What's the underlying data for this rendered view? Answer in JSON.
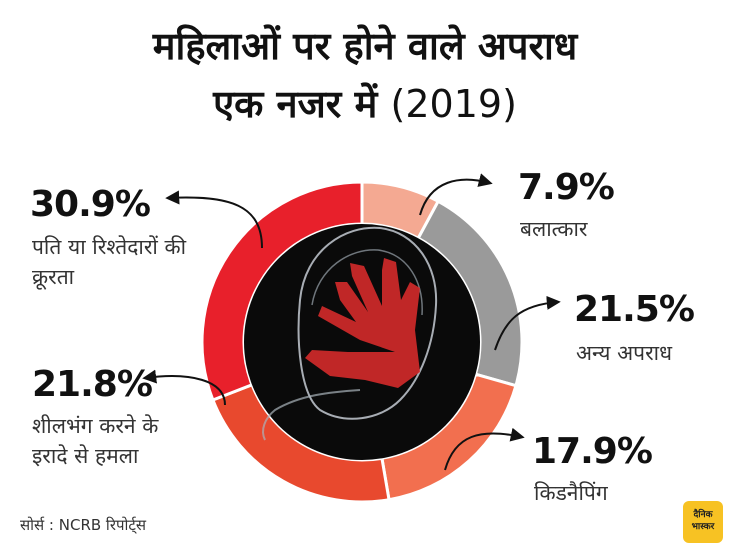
{
  "title_line1": "महिलाओं पर होने वाले अपराध",
  "title_line2": "एक नजर में",
  "title_year": "(2019)",
  "source": "सोर्स : NCRB रिपोर्ट्स",
  "logo_text": "दैनिक भास्कर",
  "chart_data": {
    "type": "pie",
    "variant": "donut",
    "start_angle_deg": 0,
    "direction": "clockwise",
    "slices": [
      {
        "label": "बलात्कार",
        "value": 7.9,
        "display": "7.9%",
        "color": "#f4a992"
      },
      {
        "label": "अन्य अपराध",
        "value": 21.5,
        "display": "21.5%",
        "color": "#9a9a9a"
      },
      {
        "label": "किडनैपिंग",
        "value": 17.9,
        "display": "17.9%",
        "color": "#f26f4f"
      },
      {
        "label": "शीलभंग करने के इरादे से हमला",
        "value": 21.8,
        "display": "21.8%",
        "color": "#e8492e"
      },
      {
        "label": "पति या रिश्तेदारों की क्रूरता",
        "value": 30.9,
        "display": "30.9%",
        "color": "#e8202b"
      }
    ]
  }
}
